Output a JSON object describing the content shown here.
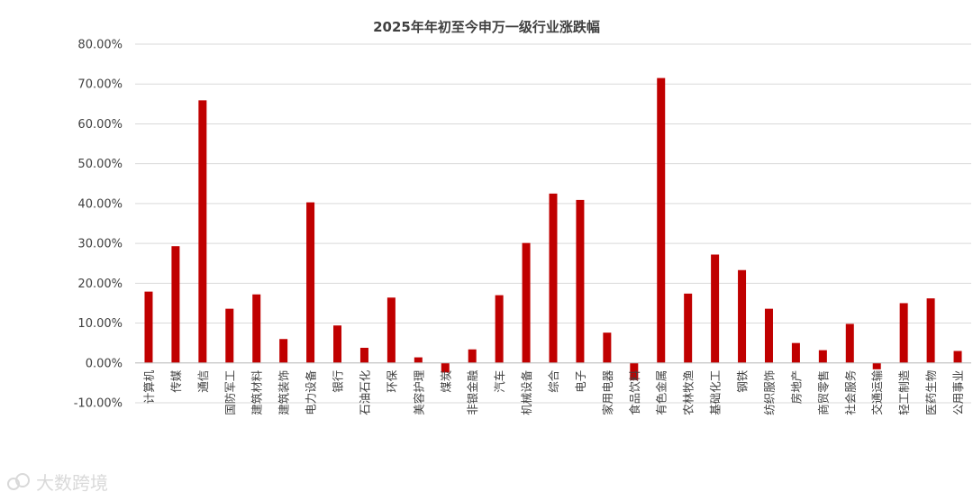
{
  "chart_data": {
    "type": "bar",
    "title": "2025年年初至今申万一级行业涨跌幅",
    "categories": [
      "计算机",
      "传媒",
      "通信",
      "国防军工",
      "建筑材料",
      "建筑装饰",
      "电力设备",
      "银行",
      "石油石化",
      "环保",
      "美容护理",
      "煤炭",
      "非银金融",
      "汽车",
      "机械设备",
      "综合",
      "电子",
      "家用电器",
      "食品饮料",
      "有色金属",
      "农林牧渔",
      "基础化工",
      "钢铁",
      "纺织服饰",
      "房地产",
      "商贸零售",
      "社会服务",
      "交通运输",
      "轻工制造",
      "医药生物",
      "公用事业"
    ],
    "values": [
      17.9,
      29.3,
      65.9,
      13.6,
      17.2,
      6.0,
      40.3,
      9.4,
      3.8,
      16.4,
      1.4,
      -2.4,
      3.4,
      17.0,
      30.1,
      42.5,
      40.9,
      7.6,
      -4.3,
      71.5,
      17.4,
      27.2,
      23.3,
      13.6,
      5.0,
      3.2,
      9.8,
      -1.6,
      15.0,
      16.2,
      3.0
    ],
    "ylim": [
      -10,
      80
    ],
    "yticks": [
      "-10.00%",
      "0.00%",
      "10.00%",
      "20.00%",
      "30.00%",
      "40.00%",
      "50.00%",
      "60.00%",
      "70.00%",
      "80.00%"
    ],
    "grid": true,
    "bar_color": "#c00000"
  },
  "watermark": {
    "text": "大数跨境",
    "icon": "watermark-logo-icon"
  }
}
